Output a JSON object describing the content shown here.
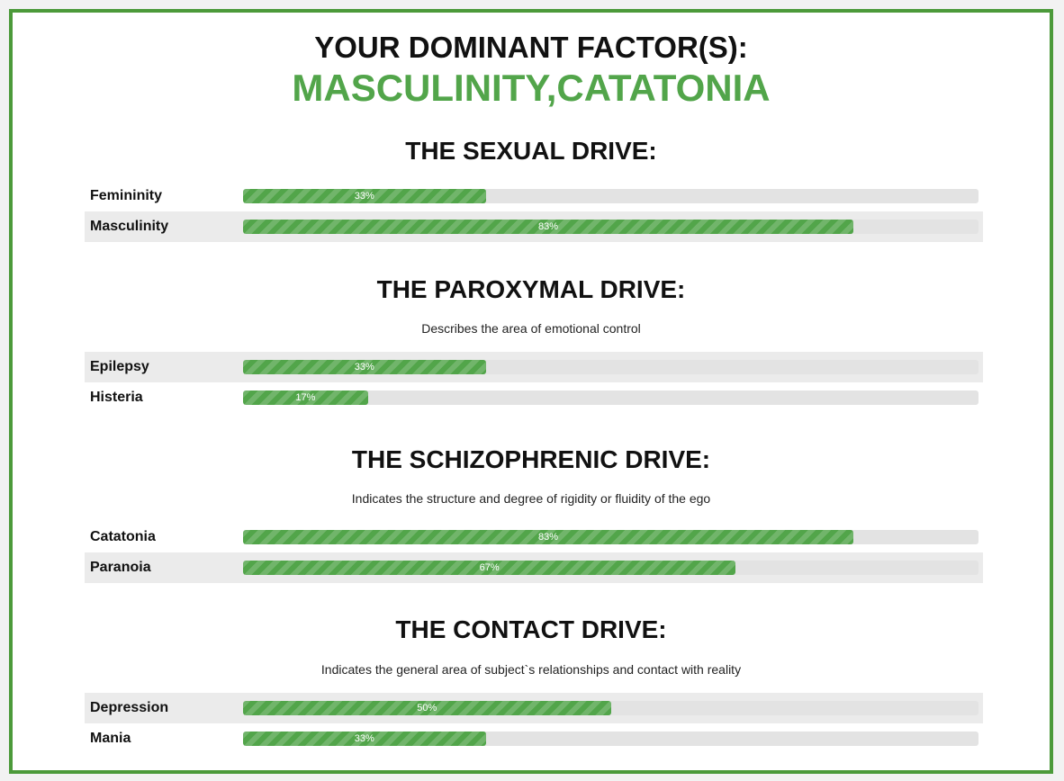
{
  "dominant": {
    "label": "YOUR DOMINANT FACTOR(S):",
    "value": "MASCULINITY,CATATONIA"
  },
  "colors": {
    "accent": "#52a54a",
    "border": "#4c9a3a",
    "track": "#e3e3e3",
    "row_shade": "#ebebeb"
  },
  "chart_data": {
    "type": "bar",
    "orientation": "horizontal",
    "xlim": [
      0,
      100
    ],
    "sections": [
      {
        "title": "THE SEXUAL DRIVE:",
        "description": "",
        "bars": [
          {
            "label": "Femininity",
            "value": 33,
            "value_label": "33%"
          },
          {
            "label": "Masculinity",
            "value": 83,
            "value_label": "83%"
          }
        ]
      },
      {
        "title": "THE PAROXYMAL DRIVE:",
        "description": "Describes the area of emotional control",
        "bars": [
          {
            "label": "Epilepsy",
            "value": 33,
            "value_label": "33%"
          },
          {
            "label": "Histeria",
            "value": 17,
            "value_label": "17%"
          }
        ]
      },
      {
        "title": "THE SCHIZOPHRENIC DRIVE:",
        "description": "Indicates the structure and degree of rigidity or fluidity of the ego",
        "bars": [
          {
            "label": "Catatonia",
            "value": 83,
            "value_label": "83%"
          },
          {
            "label": "Paranoia",
            "value": 67,
            "value_label": "67%"
          }
        ]
      },
      {
        "title": "THE CONTACT DRIVE:",
        "description": "Indicates the general area of subject`s relationships and contact with reality",
        "bars": [
          {
            "label": "Depression",
            "value": 50,
            "value_label": "50%"
          },
          {
            "label": "Mania",
            "value": 33,
            "value_label": "33%"
          }
        ]
      }
    ]
  }
}
